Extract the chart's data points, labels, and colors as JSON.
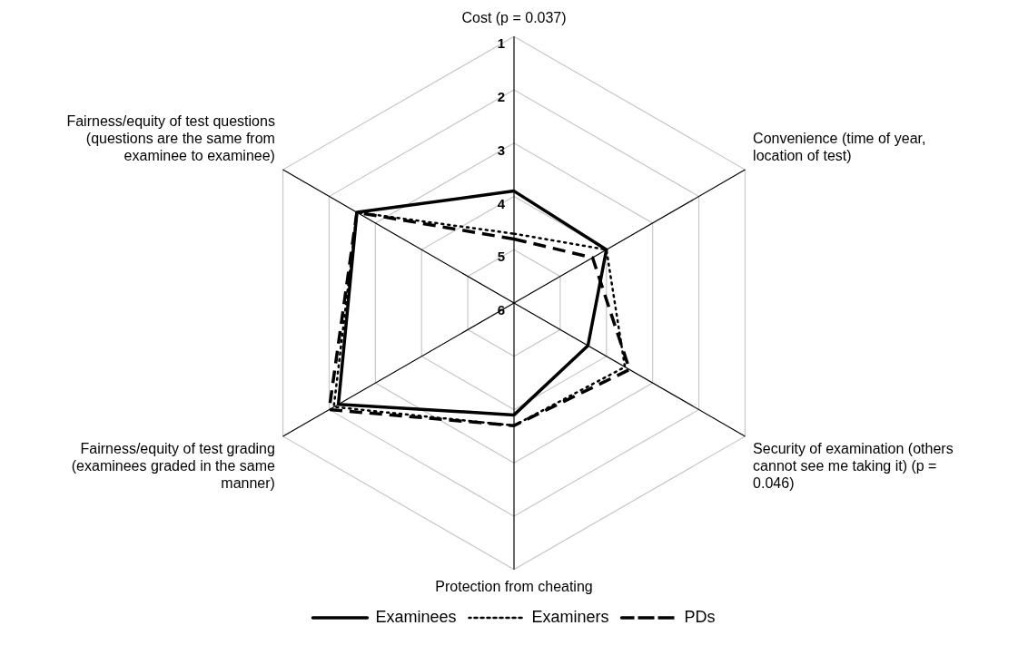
{
  "chart_data": {
    "type": "radar",
    "categories": [
      "Cost (p = 0.037)",
      "Convenience (time of year, location of test)",
      "Security of examination (others cannot see me taking it) (p = 0.046)",
      "Protection from cheating",
      "Fairness/equity of test grading (examinees graded in the same manner)",
      "Fairness/equity of test questions (questions are the same from examinee to examinee)"
    ],
    "series": [
      {
        "name": "Examinees",
        "color": "#000000",
        "line_style": "solid",
        "values": [
          3.9,
          4.0,
          4.4,
          3.9,
          2.2,
          2.6
        ]
      },
      {
        "name": "Examiners",
        "color": "#000000",
        "line_style": "dotted",
        "values": [
          4.7,
          4.0,
          3.6,
          3.7,
          2.1,
          2.6
        ]
      },
      {
        "name": "PDs",
        "color": "#000000",
        "line_style": "dashed",
        "values": [
          4.8,
          4.3,
          3.5,
          3.7,
          2.0,
          2.6
        ]
      }
    ],
    "ylim": [
      6,
      1
    ],
    "yticks": [
      6,
      5,
      4,
      3,
      2,
      1
    ],
    "grid": true,
    "legend": "bottom",
    "marker": "none"
  }
}
